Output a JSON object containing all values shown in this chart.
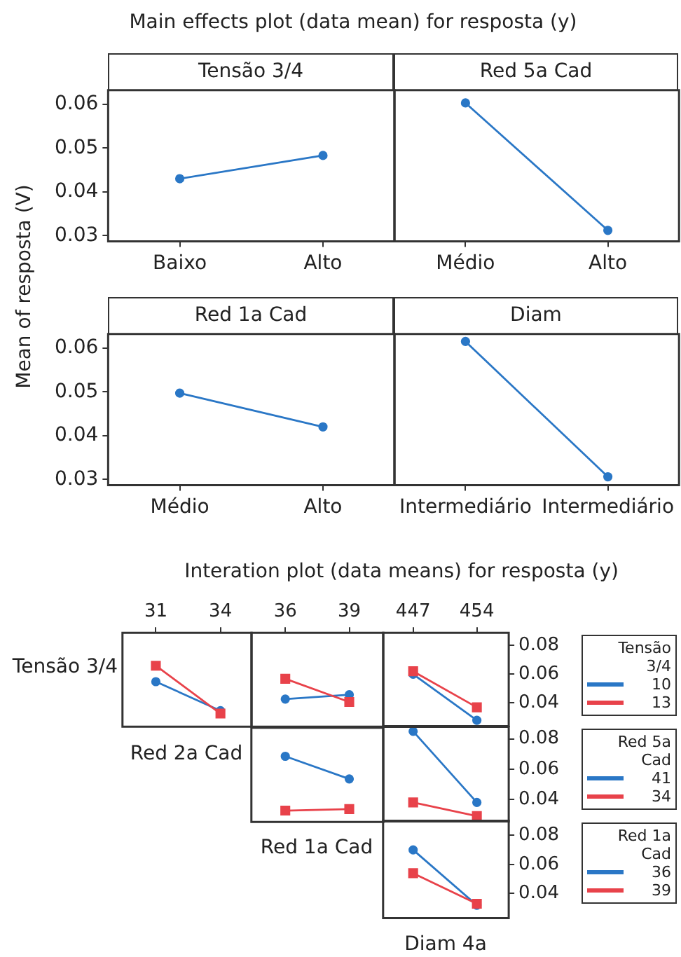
{
  "chart_data": [
    {
      "type": "line",
      "title": "Main effects plot (data mean) for resposta (y)",
      "ylabel": "Mean of resposta (V)",
      "xlabel": "Tensão 3/4",
      "categories": [
        "Baixo",
        "Alto"
      ],
      "values": [
        0.043,
        0.0483
      ],
      "color": "#2a77c6",
      "marker": "circle",
      "ylim": [
        0.0287,
        0.0632
      ],
      "yticks": [
        0.03,
        0.04,
        0.05,
        0.06
      ]
    },
    {
      "type": "line",
      "xlabel": "Red 5a Cad",
      "categories": [
        "Médio",
        "Alto"
      ],
      "values": [
        0.0603,
        0.0312
      ],
      "color": "#2a77c6",
      "marker": "circle",
      "ylim": [
        0.0287,
        0.0632
      ],
      "yticks": [
        0.03,
        0.04,
        0.05,
        0.06
      ],
      "tick_labels": "x"
    },
    {
      "type": "line",
      "xlabel": "Red 1a Cad",
      "categories": [
        "Médio",
        "Alto"
      ],
      "values": [
        0.0497,
        0.042
      ],
      "color": "#2a77c6",
      "marker": "circle",
      "ylim": [
        0.0287,
        0.0632
      ],
      "yticks": [
        0.03,
        0.04,
        0.05,
        0.06
      ]
    },
    {
      "type": "line",
      "xlabel": "Diam",
      "categories": [
        "Intermediário",
        "Intermediário"
      ],
      "values": [
        0.0615,
        0.0306
      ],
      "color": "#2a77c6",
      "marker": "circle",
      "ylim": [
        0.0287,
        0.0632
      ],
      "yticks": [
        0.03,
        0.04,
        0.05,
        0.06
      ],
      "tick_labels": "x"
    },
    {
      "type": "line",
      "title": "Interation plot (data means) for resposta (y)",
      "ylabel": "Tensão 3/4",
      "xlabel": "Red 2a Cad",
      "x": [
        31,
        34
      ],
      "xlim": [
        29.45,
        35.45
      ],
      "xticks": [
        31,
        34
      ],
      "y2lim": [
        0.024,
        0.0887
      ],
      "y2ticks": [
        0.04,
        0.06,
        0.08
      ],
      "tick_labels": "x",
      "series": [
        {
          "color": "#2a77c6",
          "marker": "circle",
          "axis": "y2",
          "values": [
            0.055,
            0.035
          ]
        },
        {
          "color": "#e8424a",
          "marker": "square",
          "axis": "y2",
          "values": [
            0.066,
            0.033
          ]
        }
      ]
    },
    {
      "type": "line",
      "x": [
        36,
        39
      ],
      "xlim": [
        34.41,
        40.6
      ],
      "xticks": [
        36,
        39
      ],
      "y2lim": [
        0.024,
        0.0887
      ],
      "y2ticks": [
        0.04,
        0.06,
        0.08
      ],
      "tick_labels": "x",
      "series": [
        {
          "color": "#2a77c6",
          "marker": "circle",
          "axis": "y2",
          "values": [
            0.043,
            0.046
          ]
        },
        {
          "color": "#e8424a",
          "marker": "square",
          "axis": "y2",
          "values": [
            0.057,
            0.041
          ]
        }
      ]
    },
    {
      "type": "line",
      "x": [
        447,
        454
      ],
      "xlim": [
        443.7,
        457.5
      ],
      "xticks": [
        447,
        454
      ],
      "y2lim": [
        0.024,
        0.0887
      ],
      "y2ticks": [
        0.04,
        0.06,
        0.08
      ],
      "legend": "right",
      "legend_title": "Tensão 3/4",
      "series": [
        {
          "name": "10",
          "color": "#2a77c6",
          "marker": "circle",
          "axis": "y2",
          "values": [
            0.06,
            0.028
          ]
        },
        {
          "name": "13",
          "color": "#e8424a",
          "marker": "square",
          "axis": "y2",
          "values": [
            0.062,
            0.037
          ]
        }
      ]
    },
    {
      "type": "line",
      "xlabel": "Red 1a Cad",
      "x": [
        36,
        39
      ],
      "xlim": [
        34.41,
        40.6
      ],
      "xticks": [
        36,
        39
      ],
      "y2lim": [
        0.0255,
        0.0879
      ],
      "y2ticks": [
        0.04,
        0.06,
        0.08
      ],
      "tick_labels": false,
      "series": [
        {
          "color": "#2a77c6",
          "marker": "circle",
          "axis": "y2",
          "values": [
            0.069,
            0.054
          ]
        },
        {
          "color": "#e8424a",
          "marker": "square",
          "axis": "y2",
          "values": [
            0.033,
            0.034
          ]
        }
      ]
    },
    {
      "type": "line",
      "x": [
        447,
        454
      ],
      "xlim": [
        443.7,
        457.5
      ],
      "xticks": [
        447,
        454
      ],
      "y2lim": [
        0.0255,
        0.0879
      ],
      "y2ticks": [
        0.04,
        0.06,
        0.08
      ],
      "tick_labels": "y",
      "legend": "right",
      "legend_title": "Red 5a Cad",
      "series": [
        {
          "name": "41",
          "color": "#2a77c6",
          "marker": "circle",
          "axis": "y2",
          "values": [
            0.085,
            0.038
          ]
        },
        {
          "name": "34",
          "color": "#e8424a",
          "marker": "square",
          "axis": "y2",
          "values": [
            0.038,
            0.029
          ]
        }
      ]
    },
    {
      "type": "line",
      "xlabel": "Diam 4a",
      "x": [
        447,
        454
      ],
      "xlim": [
        443.7,
        457.5
      ],
      "xticks": [
        447,
        454
      ],
      "y2lim": [
        0.0232,
        0.09
      ],
      "y2ticks": [
        0.04,
        0.06,
        0.08
      ],
      "tick_labels": "y",
      "legend": "right",
      "legend_title": "Red 1a Cad",
      "series": [
        {
          "name": "36",
          "color": "#2a77c6",
          "marker": "circle",
          "axis": "y2",
          "values": [
            0.07,
            0.032
          ]
        },
        {
          "name": "39",
          "color": "#e8424a",
          "marker": "square",
          "axis": "y2",
          "values": [
            0.054,
            0.033
          ]
        }
      ]
    }
  ]
}
